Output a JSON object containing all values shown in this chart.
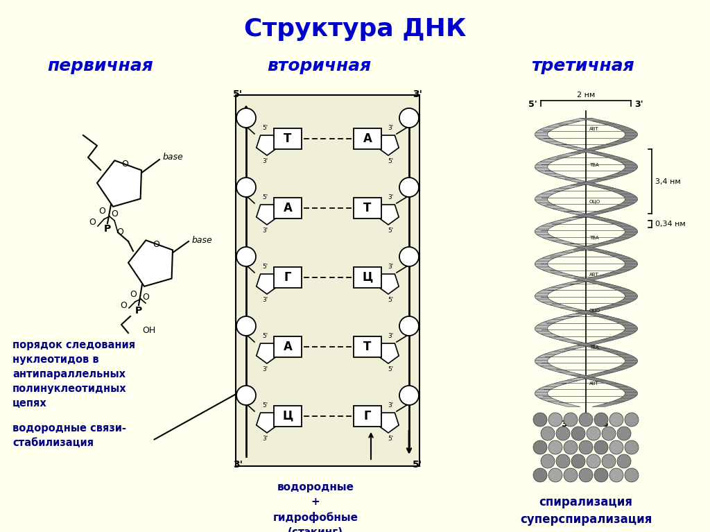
{
  "background_color": "#FFFFEE",
  "title": "Структура ДНК",
  "title_color": "#0000CC",
  "title_fontsize": 26,
  "subtitle_primary": "первичная",
  "subtitle_secondary": "вторичная",
  "subtitle_tertiary": "третичная",
  "subtitle_color": "#0000CC",
  "subtitle_fontsize": 18,
  "text_color": "#000080",
  "left_text1": "порядок следования\nнуклеотидов в\nантипараллельных\nполинуклеотидных\nцепях",
  "left_text2": "водородные связи-\nстабилизация",
  "center_text": "водородные\n+\nгидрофобные\n(стэкинг)",
  "right_text": "спирализация\nсуперспирализация",
  "base_pairs_left": [
    "Т",
    "А",
    "Г",
    "А",
    "Ц"
  ],
  "base_pairs_right": [
    "А",
    "Т",
    "Ц",
    "Т",
    "Г"
  ],
  "dim_2nm": "2 нм",
  "dim_34nm": "3,4 нм",
  "dim_034nm": "0,34 нм"
}
